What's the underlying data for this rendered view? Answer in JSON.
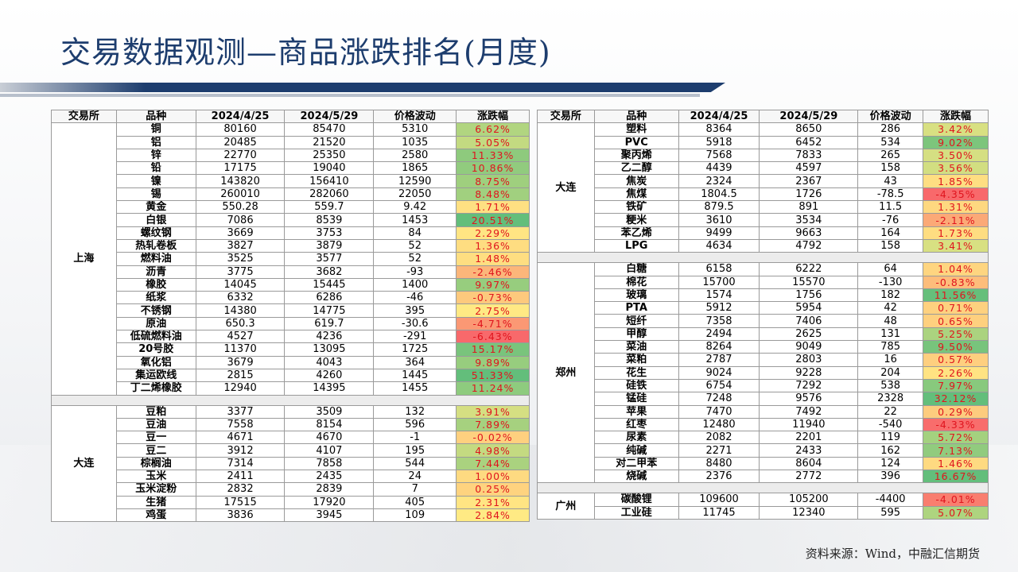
{
  "title": "交易数据观测—商品涨跌排名(月度)",
  "source": "资料来源：Wind，中融汇信期货",
  "headers": [
    "交易所",
    "品种",
    "2024/4/25",
    "2024/5/29",
    "价格波动",
    "涨跌幅"
  ],
  "colors": {
    "title": "#1d3d6e",
    "change_text": "#e0141e",
    "scale_low": "#f8696b",
    "scale_mid": "#ffeb84",
    "scale_high": "#63be7b"
  },
  "left": [
    {
      "exchange": "上海",
      "rows": [
        [
          "铜",
          "80160",
          "85470",
          "5310",
          "6.62%"
        ],
        [
          "铝",
          "20485",
          "21520",
          "1035",
          "5.05%"
        ],
        [
          "锌",
          "22770",
          "25350",
          "2580",
          "11.33%"
        ],
        [
          "铅",
          "17175",
          "19040",
          "1865",
          "10.86%"
        ],
        [
          "镍",
          "143820",
          "156410",
          "12590",
          "8.75%"
        ],
        [
          "锡",
          "260010",
          "282060",
          "22050",
          "8.48%"
        ],
        [
          "黄金",
          "550.28",
          "559.7",
          "9.42",
          "1.71%"
        ],
        [
          "白银",
          "7086",
          "8539",
          "1453",
          "20.51%"
        ],
        [
          "螺纹钢",
          "3669",
          "3753",
          "84",
          "2.29%"
        ],
        [
          "热轧卷板",
          "3827",
          "3879",
          "52",
          "1.36%"
        ],
        [
          "燃料油",
          "3525",
          "3577",
          "52",
          "1.48%"
        ],
        [
          "沥青",
          "3775",
          "3682",
          "-93",
          "-2.46%"
        ],
        [
          "橡胶",
          "14045",
          "15445",
          "1400",
          "9.97%"
        ],
        [
          "纸浆",
          "6332",
          "6286",
          "-46",
          "-0.73%"
        ],
        [
          "不锈钢",
          "14380",
          "14775",
          "395",
          "2.75%"
        ],
        [
          "原油",
          "650.3",
          "619.7",
          "-30.6",
          "-4.71%"
        ],
        [
          "低硫燃料油",
          "4527",
          "4236",
          "-291",
          "-6.43%"
        ],
        [
          "20号胶",
          "11370",
          "13095",
          "1725",
          "15.17%"
        ],
        [
          "氧化铝",
          "3679",
          "4043",
          "364",
          "9.89%"
        ],
        [
          "集运欧线",
          "2815",
          "4260",
          "1445",
          "51.33%"
        ],
        [
          "丁二烯橡胶",
          "12940",
          "14395",
          "1455",
          "11.24%"
        ]
      ]
    },
    {
      "exchange": "大连",
      "rows": [
        [
          "豆粕",
          "3377",
          "3509",
          "132",
          "3.91%"
        ],
        [
          "豆油",
          "7558",
          "8154",
          "596",
          "7.89%"
        ],
        [
          "豆一",
          "4671",
          "4670",
          "-1",
          "-0.02%"
        ],
        [
          "豆二",
          "3912",
          "4107",
          "195",
          "4.98%"
        ],
        [
          "棕榈油",
          "7314",
          "7858",
          "544",
          "7.44%"
        ],
        [
          "玉米",
          "2411",
          "2435",
          "24",
          "1.00%"
        ],
        [
          "玉米淀粉",
          "2832",
          "2839",
          "7",
          "0.25%"
        ],
        [
          "生猪",
          "17515",
          "17920",
          "405",
          "2.31%"
        ],
        [
          "鸡蛋",
          "3836",
          "3945",
          "109",
          "2.84%"
        ]
      ]
    }
  ],
  "right": [
    {
      "exchange": "大连",
      "rows": [
        [
          "塑料",
          "8364",
          "8650",
          "286",
          "3.42%"
        ],
        [
          "PVC",
          "5918",
          "6452",
          "534",
          "9.02%"
        ],
        [
          "聚丙烯",
          "7568",
          "7833",
          "265",
          "3.50%"
        ],
        [
          "乙二醇",
          "4439",
          "4597",
          "158",
          "3.56%"
        ],
        [
          "焦炭",
          "2324",
          "2367",
          "43",
          "1.85%"
        ],
        [
          "焦煤",
          "1804.5",
          "1726",
          "-78.5",
          "-4.35%"
        ],
        [
          "铁矿",
          "879.5",
          "891",
          "11.5",
          "1.31%"
        ],
        [
          "粳米",
          "3610",
          "3534",
          "-76",
          "-2.11%"
        ],
        [
          "苯乙烯",
          "9499",
          "9663",
          "164",
          "1.73%"
        ],
        [
          "LPG",
          "4634",
          "4792",
          "158",
          "3.41%"
        ]
      ]
    },
    {
      "exchange": "郑州",
      "rows": [
        [
          "白糖",
          "6158",
          "6222",
          "64",
          "1.04%"
        ],
        [
          "棉花",
          "15700",
          "15570",
          "-130",
          "-0.83%"
        ],
        [
          "玻璃",
          "1574",
          "1756",
          "182",
          "11.56%"
        ],
        [
          "PTA",
          "5912",
          "5954",
          "42",
          "0.71%"
        ],
        [
          "短纤",
          "7358",
          "7406",
          "48",
          "0.65%"
        ],
        [
          "甲醇",
          "2494",
          "2625",
          "131",
          "5.25%"
        ],
        [
          "菜油",
          "8264",
          "9049",
          "785",
          "9.50%"
        ],
        [
          "菜粕",
          "2787",
          "2803",
          "16",
          "0.57%"
        ],
        [
          "花生",
          "9024",
          "9228",
          "204",
          "2.26%"
        ],
        [
          "硅铁",
          "6754",
          "7292",
          "538",
          "7.97%"
        ],
        [
          "锰硅",
          "7248",
          "9576",
          "2328",
          "32.12%"
        ],
        [
          "苹果",
          "7470",
          "7492",
          "22",
          "0.29%"
        ],
        [
          "红枣",
          "12480",
          "11940",
          "-540",
          "-4.33%"
        ],
        [
          "尿素",
          "2082",
          "2201",
          "119",
          "5.72%"
        ],
        [
          "纯碱",
          "2271",
          "2433",
          "162",
          "7.13%"
        ],
        [
          "对二甲苯",
          "8480",
          "8604",
          "124",
          "1.46%"
        ],
        [
          "烧碱",
          "2376",
          "2772",
          "396",
          "16.67%"
        ]
      ]
    },
    {
      "exchange": "广州",
      "rows": [
        [
          "碳酸锂",
          "109600",
          "105200",
          "-4400",
          "-4.01%"
        ],
        [
          "工业硅",
          "11745",
          "12340",
          "595",
          "5.07%"
        ]
      ]
    }
  ]
}
